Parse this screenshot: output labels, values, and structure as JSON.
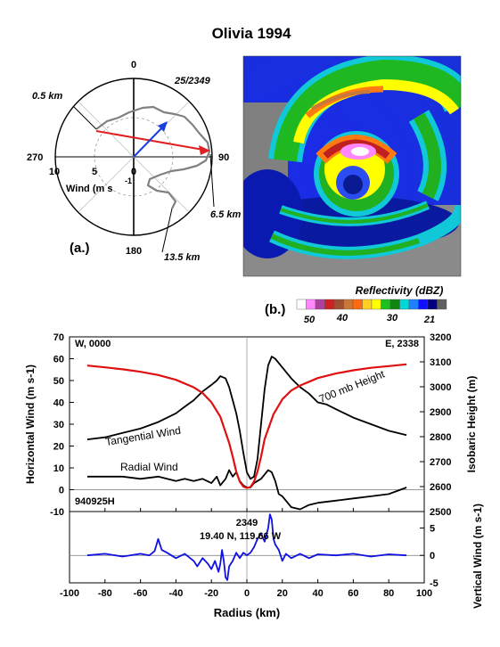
{
  "title": "Olivia 1994",
  "panel_a": {
    "label": "(a.)",
    "time": "25/2349",
    "compass": [
      "0",
      "90",
      "180",
      "270"
    ],
    "ring_labels": [
      "10",
      "5",
      "0"
    ],
    "ring_neg": "-1",
    "wind_label": "Wind (m s",
    "height_labels": [
      "0.5 km",
      "6.5 km",
      "13.5 km"
    ],
    "colors": {
      "shear": "#e02020",
      "mean": "#1a3fe0",
      "hodograph": "#808080"
    }
  },
  "panel_b": {
    "label": "(b.)",
    "colorbar_title": "Reflectivity (dBZ)",
    "colorbar_ticks": [
      "50",
      "40",
      "30",
      "21"
    ],
    "colorbar_colors": [
      "#ffffff",
      "#ff88ff",
      "#b040a0",
      "#d02020",
      "#a05030",
      "#c87838",
      "#ff6a10",
      "#ffd020",
      "#ffff00",
      "#20c020",
      "#108810",
      "#00d8d8",
      "#2080ff",
      "#1010ff",
      "#000080",
      "#606060"
    ]
  },
  "chart_data": [
    {
      "type": "line",
      "title": "",
      "xlabel": "Radius (km)",
      "ylabel": "Horizontal Wind (m s-1)",
      "y2label": "Isobaric Height (m)",
      "xlim": [
        -100,
        100
      ],
      "ylim": [
        -10,
        70
      ],
      "y2lim": [
        2500,
        3200
      ],
      "x_ticks": [
        "-100",
        "-80",
        "-60",
        "-40",
        "-20",
        "0",
        "20",
        "40",
        "60",
        "80",
        "100"
      ],
      "y_ticks": [
        "-10",
        "0",
        "10",
        "20",
        "30",
        "40",
        "50",
        "60",
        "70"
      ],
      "y2_ticks": [
        "2500",
        "2600",
        "2700",
        "2800",
        "2900",
        "3000",
        "3100",
        "3200"
      ],
      "annotations": {
        "west": "W, 0000",
        "east": "E, 2338",
        "flight": "940925H"
      },
      "series": [
        {
          "name": "Tangential Wind",
          "axis": "left",
          "color": "#000000",
          "x": [
            -90,
            -80,
            -70,
            -60,
            -50,
            -40,
            -35,
            -30,
            -25,
            -20,
            -17,
            -15,
            -12,
            -10,
            -8,
            -6,
            -4,
            -2,
            0,
            2,
            4,
            6,
            8,
            10,
            12,
            14,
            16,
            18,
            20,
            25,
            30,
            35,
            40,
            45,
            50,
            60,
            70,
            80,
            90
          ],
          "y": [
            23,
            24,
            26,
            28,
            31,
            35,
            38,
            41,
            45,
            48,
            50,
            52,
            51,
            47,
            41,
            35,
            27,
            17,
            8,
            5,
            6,
            14,
            30,
            46,
            57,
            61,
            60,
            58,
            56,
            51,
            47,
            44,
            40,
            39,
            37,
            33,
            30,
            27,
            25
          ]
        },
        {
          "name": "Radial Wind",
          "axis": "left",
          "color": "#000000",
          "x": [
            -90,
            -80,
            -70,
            -60,
            -50,
            -40,
            -35,
            -30,
            -25,
            -20,
            -17,
            -15,
            -12,
            -10,
            -8,
            -6,
            -4,
            -2,
            0,
            2,
            4,
            6,
            8,
            10,
            12,
            14,
            16,
            18,
            20,
            25,
            30,
            35,
            40,
            50,
            60,
            70,
            80,
            90
          ],
          "y": [
            6,
            6,
            6,
            5,
            6,
            4,
            5,
            4,
            5,
            3,
            6,
            2,
            5,
            9,
            6,
            8,
            4,
            2,
            1,
            1,
            3,
            4,
            5,
            7,
            9,
            8,
            4,
            -2,
            -3,
            -8,
            -9,
            -7,
            -6,
            -5,
            -4,
            -3,
            -2,
            1
          ]
        },
        {
          "name": "700 mb Height",
          "axis": "right",
          "color": "#e01010",
          "x": [
            -90,
            -80,
            -70,
            -60,
            -50,
            -40,
            -30,
            -25,
            -20,
            -15,
            -10,
            -8,
            -6,
            -4,
            -2,
            0,
            2,
            4,
            6,
            8,
            10,
            15,
            20,
            25,
            30,
            40,
            50,
            60,
            70,
            80,
            90
          ],
          "y": [
            3085,
            3078,
            3070,
            3060,
            3047,
            3028,
            2998,
            2975,
            2938,
            2880,
            2775,
            2720,
            2660,
            2620,
            2600,
            2595,
            2598,
            2620,
            2660,
            2720,
            2790,
            2890,
            2950,
            2985,
            3005,
            3035,
            3053,
            3066,
            3076,
            3083,
            3090
          ]
        }
      ],
      "series_labels": [
        "Tangential Wind",
        "Radial Wind",
        "700 mb Height"
      ]
    },
    {
      "type": "line",
      "title": "",
      "xlabel": "Radius (km)",
      "ylabel": "",
      "y2label": "Vertical Wind (m s-1)",
      "xlim": [
        -100,
        100
      ],
      "ylim": [
        -5,
        8
      ],
      "y2_ticks": [
        "5",
        "0",
        "-5"
      ],
      "annotations": {
        "time": "2349",
        "position": "19.40 N, 119.66 W"
      },
      "series": [
        {
          "name": "Vertical Wind",
          "color": "#1010e0",
          "x": [
            -90,
            -80,
            -70,
            -60,
            -55,
            -52,
            -50,
            -48,
            -45,
            -40,
            -35,
            -30,
            -28,
            -25,
            -22,
            -20,
            -18,
            -16,
            -15,
            -14,
            -13,
            -12,
            -11,
            -10,
            -8,
            -6,
            -4,
            -2,
            0,
            2,
            4,
            6,
            8,
            10,
            12,
            13,
            14,
            15,
            16,
            18,
            20,
            22,
            25,
            30,
            35,
            40,
            50,
            60,
            70,
            80,
            90
          ],
          "y": [
            0,
            0.3,
            -0.2,
            0.3,
            0,
            0.8,
            3,
            1,
            0.5,
            -0.5,
            0.3,
            -1,
            -2,
            -0.5,
            -1.5,
            -2.5,
            -1,
            -3,
            -1.5,
            1,
            -1,
            -4,
            -4.5,
            -2,
            -1,
            0.5,
            -0.5,
            0.5,
            0,
            0.5,
            1.5,
            3,
            4,
            2.5,
            5,
            7.5,
            6.5,
            3,
            2,
            1,
            -1,
            0.3,
            -0.5,
            0.3,
            -0.5,
            0.2,
            0,
            0.3,
            -0.2,
            0.2,
            0
          ]
        }
      ]
    }
  ]
}
